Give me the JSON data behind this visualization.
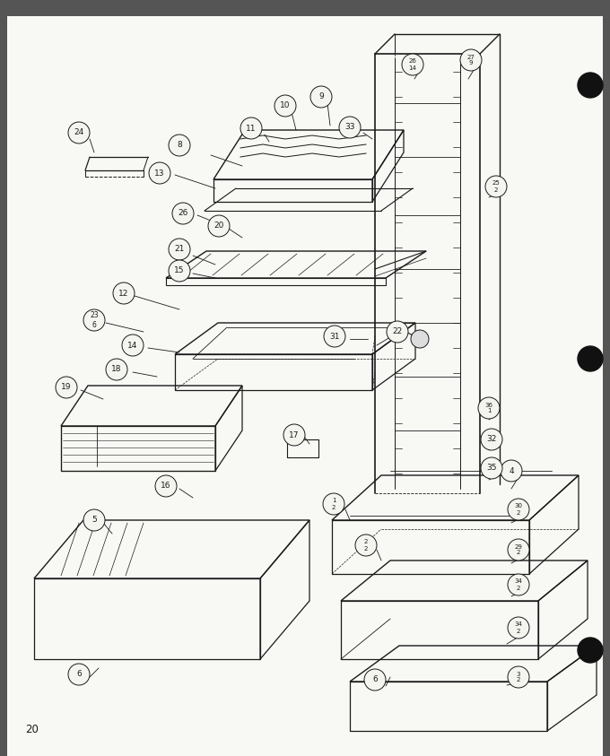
{
  "page_number": "20",
  "background_color": "#f5f5f0",
  "line_color": "#1a1a1a",
  "text_color": "#1a1a1a",
  "figsize": [
    6.8,
    8.43
  ],
  "dpi": 100
}
